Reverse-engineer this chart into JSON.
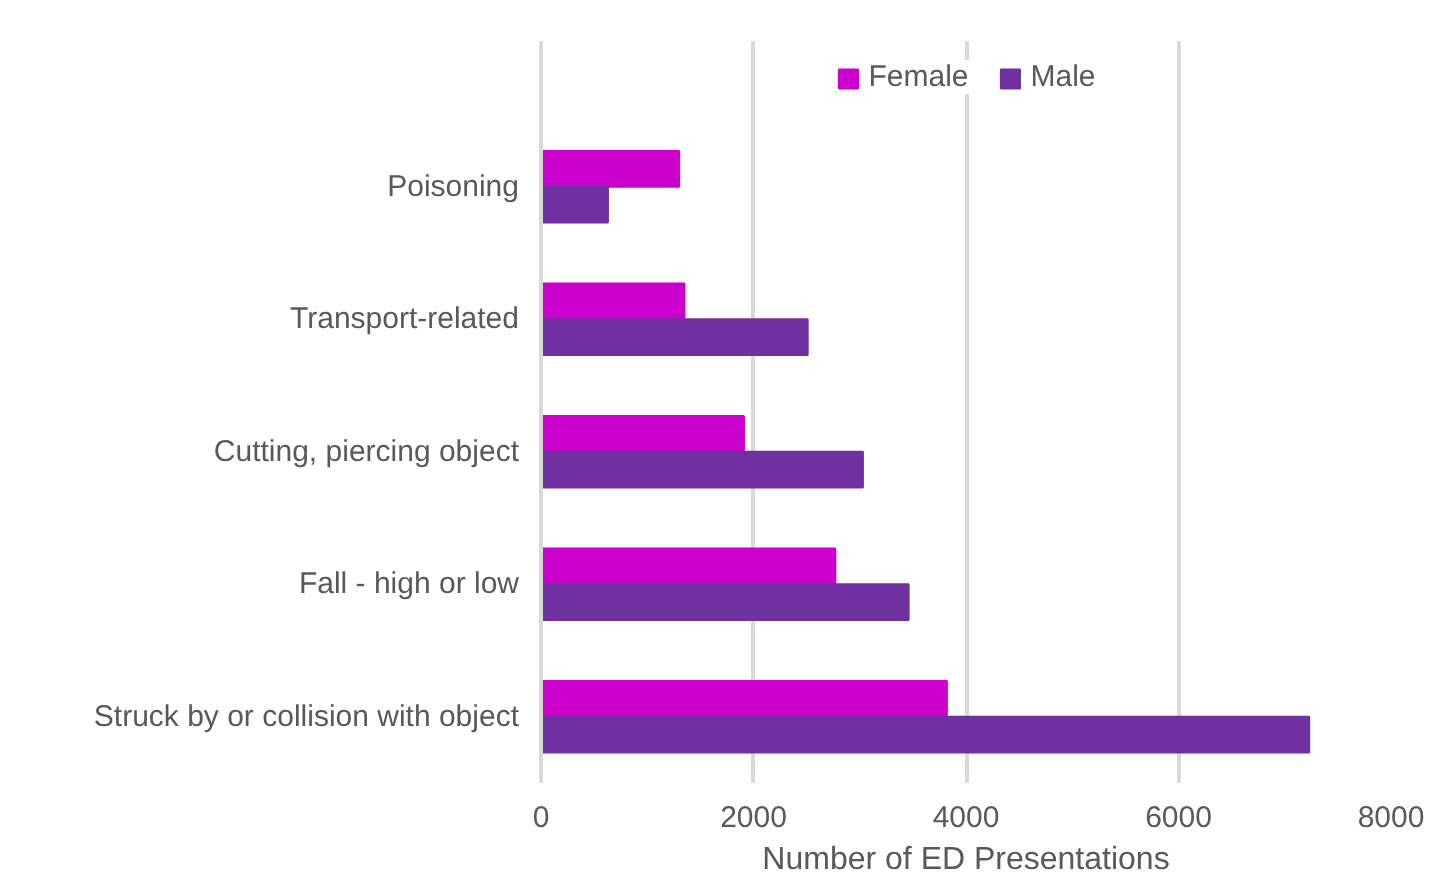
{
  "chart_data": {
    "type": "bar",
    "orientation": "horizontal",
    "xlabel": "Number of ED Presentations",
    "categories": [
      "Poisoning",
      "Transport-related",
      "Cutting, piercing object",
      "Fall - high or low",
      "Struck by or collision with object"
    ],
    "series": [
      {
        "name": "Female",
        "color": "#cc00cc",
        "values": [
          1300,
          1350,
          1910,
          2770,
          3820
        ]
      },
      {
        "name": "Male",
        "color": "#7030a0",
        "values": [
          630,
          2510,
          3030,
          3460,
          7230
        ]
      }
    ],
    "xlim": [
      0,
      8000
    ],
    "xticks": [
      0,
      2000,
      4000,
      6000,
      8000
    ],
    "grid": "x",
    "legend": "top"
  }
}
